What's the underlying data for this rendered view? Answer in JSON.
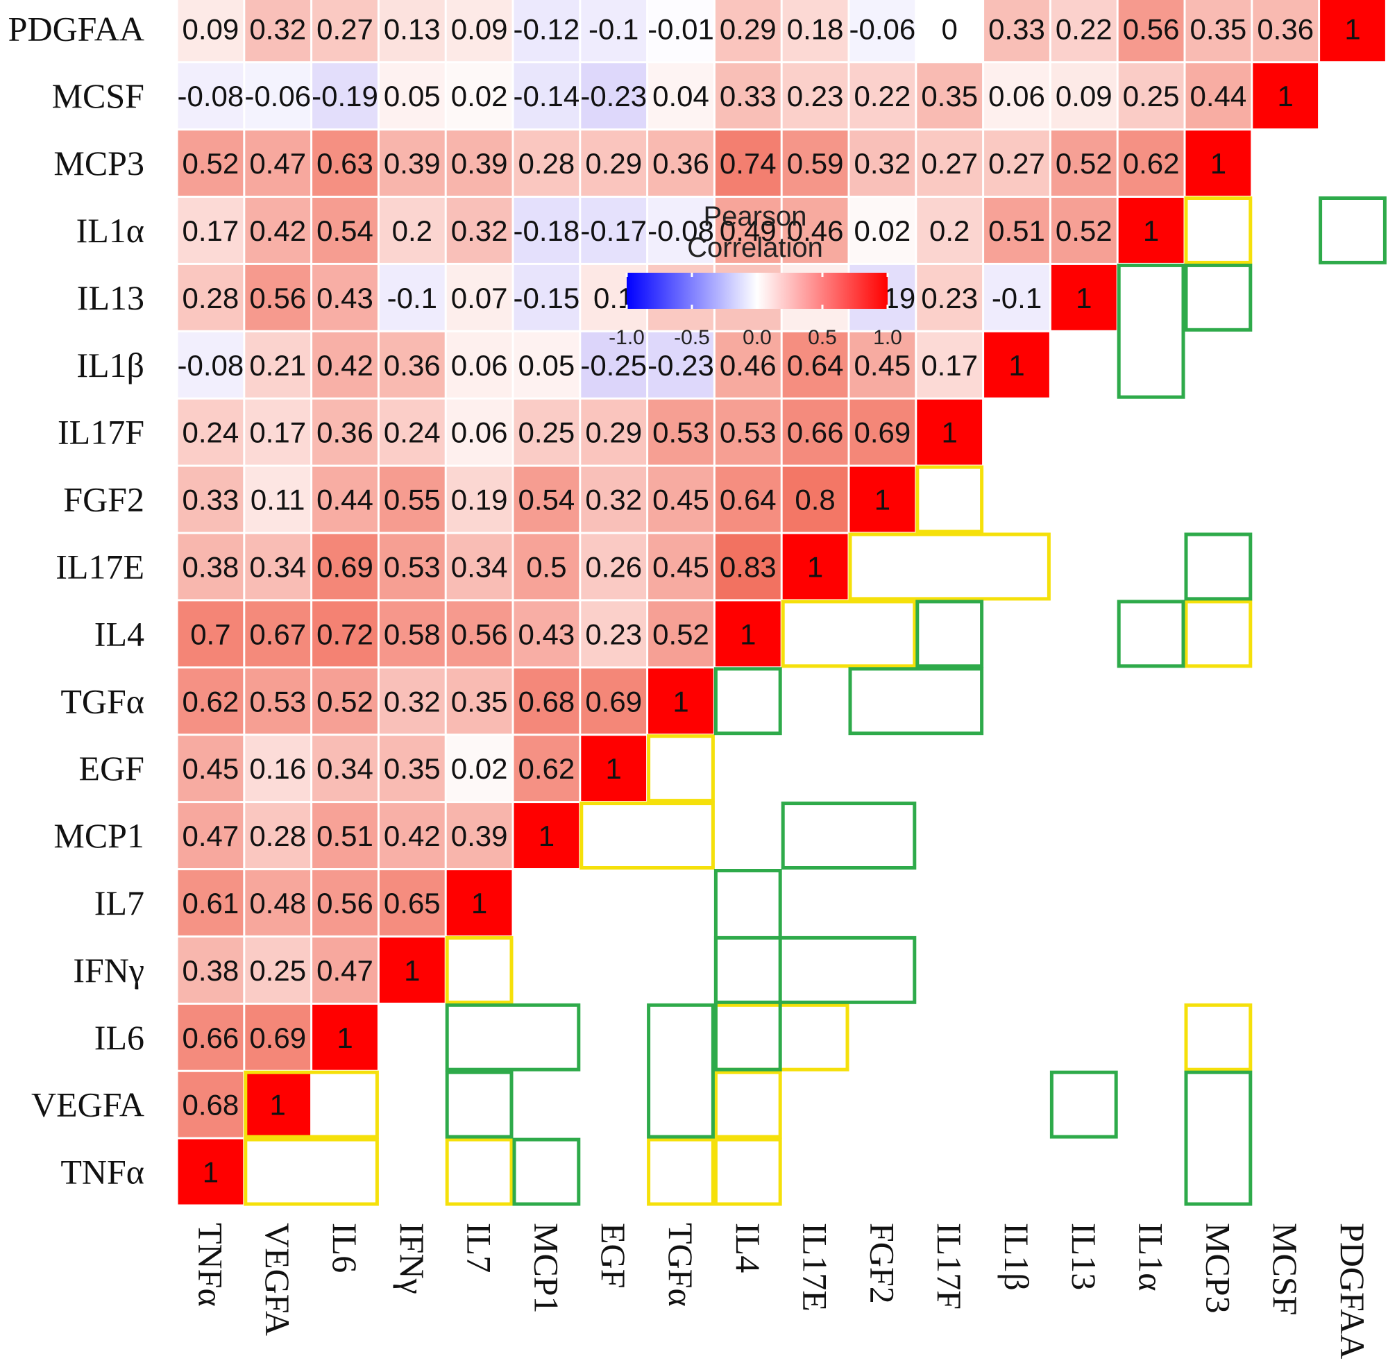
{
  "chart_data": {
    "type": "heatmap",
    "variables": [
      "TNFα",
      "VEGFA",
      "IL6",
      "IFNγ",
      "IL7",
      "MCP1",
      "EGF",
      "TGFα",
      "IL4",
      "IL17E",
      "FGF2",
      "IL17F",
      "IL1β",
      "IL13",
      "IL1α",
      "MCP3",
      "MCSF",
      "PDGFAA"
    ],
    "value_range": [
      -1.0,
      1.0
    ],
    "matrix": [
      [
        1
      ],
      [
        0.68,
        1
      ],
      [
        0.66,
        0.69,
        1
      ],
      [
        0.38,
        0.25,
        0.47,
        1
      ],
      [
        0.61,
        0.48,
        0.56,
        0.65,
        1
      ],
      [
        0.47,
        0.28,
        0.51,
        0.42,
        0.39,
        1
      ],
      [
        0.45,
        0.16,
        0.34,
        0.35,
        0.02,
        0.62,
        1
      ],
      [
        0.62,
        0.53,
        0.52,
        0.32,
        0.35,
        0.68,
        0.69,
        1
      ],
      [
        0.7,
        0.67,
        0.72,
        0.58,
        0.56,
        0.43,
        0.23,
        0.52,
        1
      ],
      [
        0.38,
        0.34,
        0.69,
        0.53,
        0.34,
        0.5,
        0.26,
        0.45,
        0.83,
        1
      ],
      [
        0.33,
        0.11,
        0.44,
        0.55,
        0.19,
        0.54,
        0.32,
        0.45,
        0.64,
        0.8,
        1
      ],
      [
        0.24,
        0.17,
        0.36,
        0.24,
        0.06,
        0.25,
        0.29,
        0.53,
        0.53,
        0.66,
        0.69,
        1
      ],
      [
        -0.08,
        0.21,
        0.42,
        0.36,
        0.06,
        0.05,
        -0.25,
        -0.23,
        0.46,
        0.64,
        0.45,
        0.17,
        1
      ],
      [
        0.28,
        0.56,
        0.43,
        -0.1,
        0.07,
        -0.15,
        0.1,
        0.27,
        0.31,
        0.07,
        -0.19,
        0.23,
        -0.1,
        1
      ],
      [
        0.17,
        0.42,
        0.54,
        0.2,
        0.32,
        -0.18,
        -0.17,
        -0.08,
        0.49,
        0.46,
        0.02,
        0.2,
        0.51,
        0.52,
        1
      ],
      [
        0.52,
        0.47,
        0.63,
        0.39,
        0.39,
        0.28,
        0.29,
        0.36,
        0.74,
        0.59,
        0.32,
        0.27,
        0.27,
        0.52,
        0.62,
        1
      ],
      [
        -0.08,
        -0.06,
        -0.19,
        0.05,
        0.02,
        -0.14,
        -0.23,
        0.04,
        0.33,
        0.23,
        0.22,
        0.35,
        0.06,
        0.09,
        0.25,
        0.44,
        1
      ],
      [
        0.09,
        0.32,
        0.27,
        0.13,
        0.09,
        -0.12,
        -0.1,
        -0.01,
        0.29,
        0.18,
        -0.06,
        0,
        0.33,
        0.22,
        0.56,
        0.35,
        0.36,
        1
      ]
    ],
    "highlights": {
      "yellow": [
        {
          "row": "TNFα",
          "cols": [
            "VEGFA",
            "IL6"
          ]
        },
        {
          "row": "VEGFA",
          "cols": [
            "VEGFA",
            "IL6"
          ]
        },
        {
          "row": "TNFα",
          "cols": [
            "IL7"
          ]
        },
        {
          "row": "TNFα",
          "cols": [
            "TGFα"
          ]
        },
        {
          "row": "TNFα",
          "cols": [
            "IL4"
          ]
        },
        {
          "row": "VEGFA",
          "cols": [
            "IL4"
          ]
        },
        {
          "row": "IL6",
          "cols": [
            "IL4",
            "IL17E"
          ]
        },
        {
          "row": "IL6",
          "cols": [
            "MCP3"
          ]
        },
        {
          "row": "IFNγ",
          "cols": [
            "IL7"
          ]
        },
        {
          "row": "MCP1",
          "cols": [
            "EGF",
            "TGFα"
          ]
        },
        {
          "row": "EGF",
          "cols": [
            "TGFα"
          ]
        },
        {
          "row": "IL4",
          "cols": [
            "IL17E",
            "FGF2"
          ]
        },
        {
          "row": "IL4",
          "cols": [
            "MCP3"
          ]
        },
        {
          "row": "IL17E",
          "cols": [
            "FGF2",
            "IL17F",
            "IL1β"
          ]
        },
        {
          "row": "FGF2",
          "cols": [
            "IL17F"
          ]
        },
        {
          "row": "IL1α",
          "cols": [
            "MCP3"
          ]
        }
      ],
      "green": [
        {
          "rows": [
            "TNFα"
          ],
          "cols": [
            "MCP1"
          ]
        },
        {
          "rows": [
            "TNFα",
            "VEGFA"
          ],
          "cols": [
            "MCP3"
          ]
        },
        {
          "rows": [
            "VEGFA",
            "IL6"
          ],
          "cols": [
            "TGFα"
          ]
        },
        {
          "rows": [
            "VEGFA"
          ],
          "cols": [
            "IL7"
          ]
        },
        {
          "rows": [
            "VEGFA"
          ],
          "cols": [
            "IL13"
          ]
        },
        {
          "rows": [
            "IL6"
          ],
          "cols": [
            "IL7",
            "MCP1"
          ]
        },
        {
          "rows": [
            "IL6",
            "IFNγ",
            "IL7"
          ],
          "cols": [
            "IL4"
          ]
        },
        {
          "rows": [
            "IFNγ"
          ],
          "cols": [
            "IL4",
            "IL17E",
            "FGF2"
          ]
        },
        {
          "rows": [
            "MCP1"
          ],
          "cols": [
            "IL17E",
            "FGF2"
          ]
        },
        {
          "rows": [
            "TGFα"
          ],
          "cols": [
            "IL4"
          ]
        },
        {
          "rows": [
            "TGFα"
          ],
          "cols": [
            "FGF2",
            "IL17F"
          ]
        },
        {
          "rows": [
            "IL4"
          ],
          "cols": [
            "IL17F"
          ]
        },
        {
          "rows": [
            "IL4"
          ],
          "cols": [
            "IL1α"
          ]
        },
        {
          "rows": [
            "IL17E"
          ],
          "cols": [
            "MCP3"
          ]
        },
        {
          "rows": [
            "IL1β",
            "IL13"
          ],
          "cols": [
            "IL1α"
          ]
        },
        {
          "rows": [
            "IL13"
          ],
          "cols": [
            "MCP3"
          ]
        },
        {
          "rows": [
            "IL1α"
          ],
          "cols": [
            "PDGFAA"
          ]
        }
      ]
    },
    "legend": {
      "title_lines": [
        "Pearson",
        "Correlation"
      ],
      "ticks": [
        "-1.0",
        "-0.5",
        "0.0",
        "0.5",
        "1.0"
      ],
      "colors": {
        "low": "#0000ff",
        "mid": "#ffffff",
        "high": "#ff0000"
      }
    }
  }
}
